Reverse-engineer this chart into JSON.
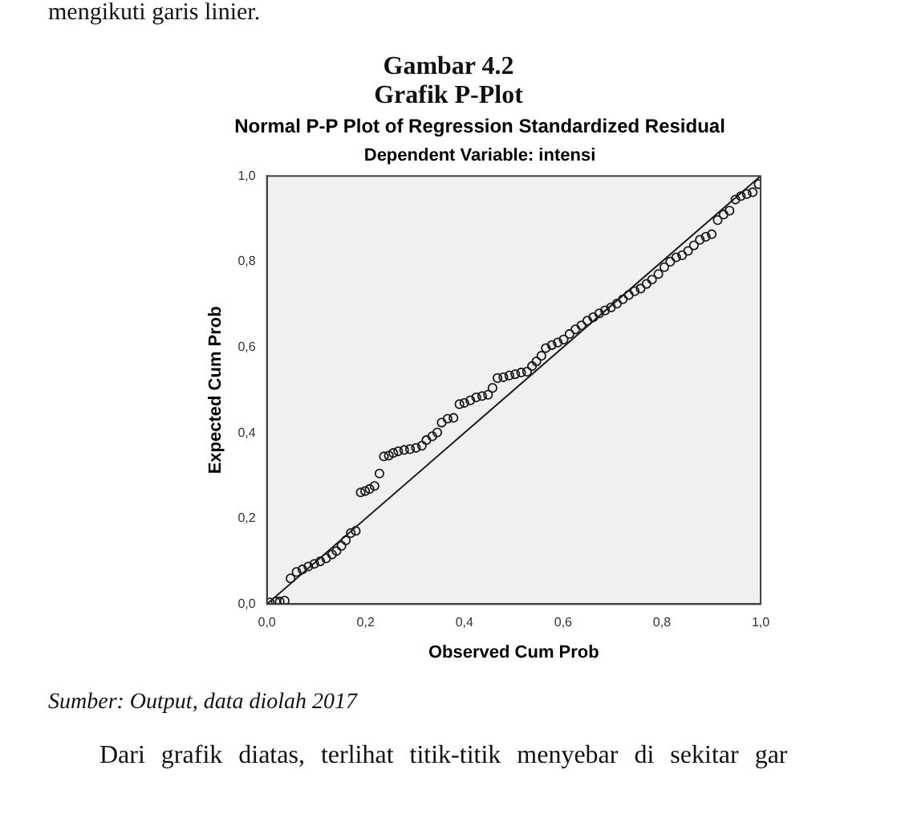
{
  "chart_data": {
    "type": "scatter",
    "title": "Normal P-P Plot of Regression Standardized Residual",
    "subtitle": "Dependent Variable: intensi",
    "xlabel": "Observed Cum Prob",
    "ylabel": "Expected Cum Prob",
    "annotations": [
      "mengikuti garis linier.",
      "Gambar 4.2",
      "Grafik P-Plot",
      "Sumber: Output, data diolah 2017",
      "Dari grafik diatas, terlihat titik-titik menyebar di sekitar gar"
    ],
    "xlim": [
      0,
      1
    ],
    "ylim": [
      0,
      1
    ],
    "xticks": [
      {
        "value": 0,
        "label": "0,0"
      },
      {
        "value": 0.2,
        "label": "0,2"
      },
      {
        "value": 0.4,
        "label": "0,4"
      },
      {
        "value": 0.6,
        "label": "0,6"
      },
      {
        "value": 0.8,
        "label": "0,8"
      },
      {
        "value": 1,
        "label": "1,0"
      }
    ],
    "yticks": [
      {
        "value": 0,
        "label": "0,0"
      },
      {
        "value": 0.2,
        "label": "0,2"
      },
      {
        "value": 0.4,
        "label": "0,4"
      },
      {
        "value": 0.6,
        "label": "0,6"
      },
      {
        "value": 0.8,
        "label": "0,8"
      },
      {
        "value": 1,
        "label": "1,0"
      }
    ],
    "grid": false,
    "legend": false,
    "marker": "circle",
    "series": [
      {
        "color": "#1a1a1a",
        "x": [
          0.006,
          0.018,
          0.026,
          0.036,
          0.048,
          0.06,
          0.072,
          0.084,
          0.096,
          0.108,
          0.12,
          0.132,
          0.141,
          0.151,
          0.16,
          0.17,
          0.18,
          0.19,
          0.199,
          0.208,
          0.218,
          0.228,
          0.237,
          0.247,
          0.256,
          0.266,
          0.278,
          0.29,
          0.302,
          0.314,
          0.323,
          0.335,
          0.345,
          0.354,
          0.366,
          0.378,
          0.39,
          0.4,
          0.412,
          0.424,
          0.436,
          0.448,
          0.457,
          0.467,
          0.479,
          0.491,
          0.503,
          0.515,
          0.527,
          0.537,
          0.546,
          0.556,
          0.565,
          0.577,
          0.589,
          0.601,
          0.613,
          0.625,
          0.637,
          0.649,
          0.661,
          0.673,
          0.685,
          0.697,
          0.709,
          0.721,
          0.733,
          0.745,
          0.757,
          0.769,
          0.78,
          0.793,
          0.805,
          0.817,
          0.829,
          0.841,
          0.853,
          0.865,
          0.877,
          0.889,
          0.901,
          0.913,
          0.925,
          0.937,
          0.949,
          0.96,
          0.972,
          0.984,
          0.996
        ],
        "values": [
          0.004,
          0.006,
          0.006,
          0.008,
          0.06,
          0.075,
          0.081,
          0.088,
          0.094,
          0.1,
          0.107,
          0.116,
          0.124,
          0.136,
          0.149,
          0.166,
          0.171,
          0.261,
          0.264,
          0.269,
          0.276,
          0.305,
          0.345,
          0.347,
          0.353,
          0.357,
          0.36,
          0.362,
          0.365,
          0.37,
          0.383,
          0.392,
          0.401,
          0.424,
          0.433,
          0.435,
          0.467,
          0.47,
          0.476,
          0.483,
          0.486,
          0.489,
          0.505,
          0.528,
          0.53,
          0.534,
          0.537,
          0.541,
          0.543,
          0.556,
          0.567,
          0.58,
          0.598,
          0.605,
          0.611,
          0.618,
          0.631,
          0.642,
          0.651,
          0.662,
          0.67,
          0.679,
          0.686,
          0.693,
          0.702,
          0.712,
          0.722,
          0.731,
          0.737,
          0.748,
          0.758,
          0.771,
          0.787,
          0.8,
          0.81,
          0.815,
          0.825,
          0.838,
          0.851,
          0.858,
          0.864,
          0.897,
          0.91,
          0.919,
          0.945,
          0.953,
          0.958,
          0.962,
          0.981
        ]
      },
      {
        "type": "line",
        "color": "#1a1a1a",
        "line_style": "solid",
        "marker": "none",
        "x": [
          0,
          1
        ],
        "values": [
          0,
          1
        ]
      }
    ]
  }
}
